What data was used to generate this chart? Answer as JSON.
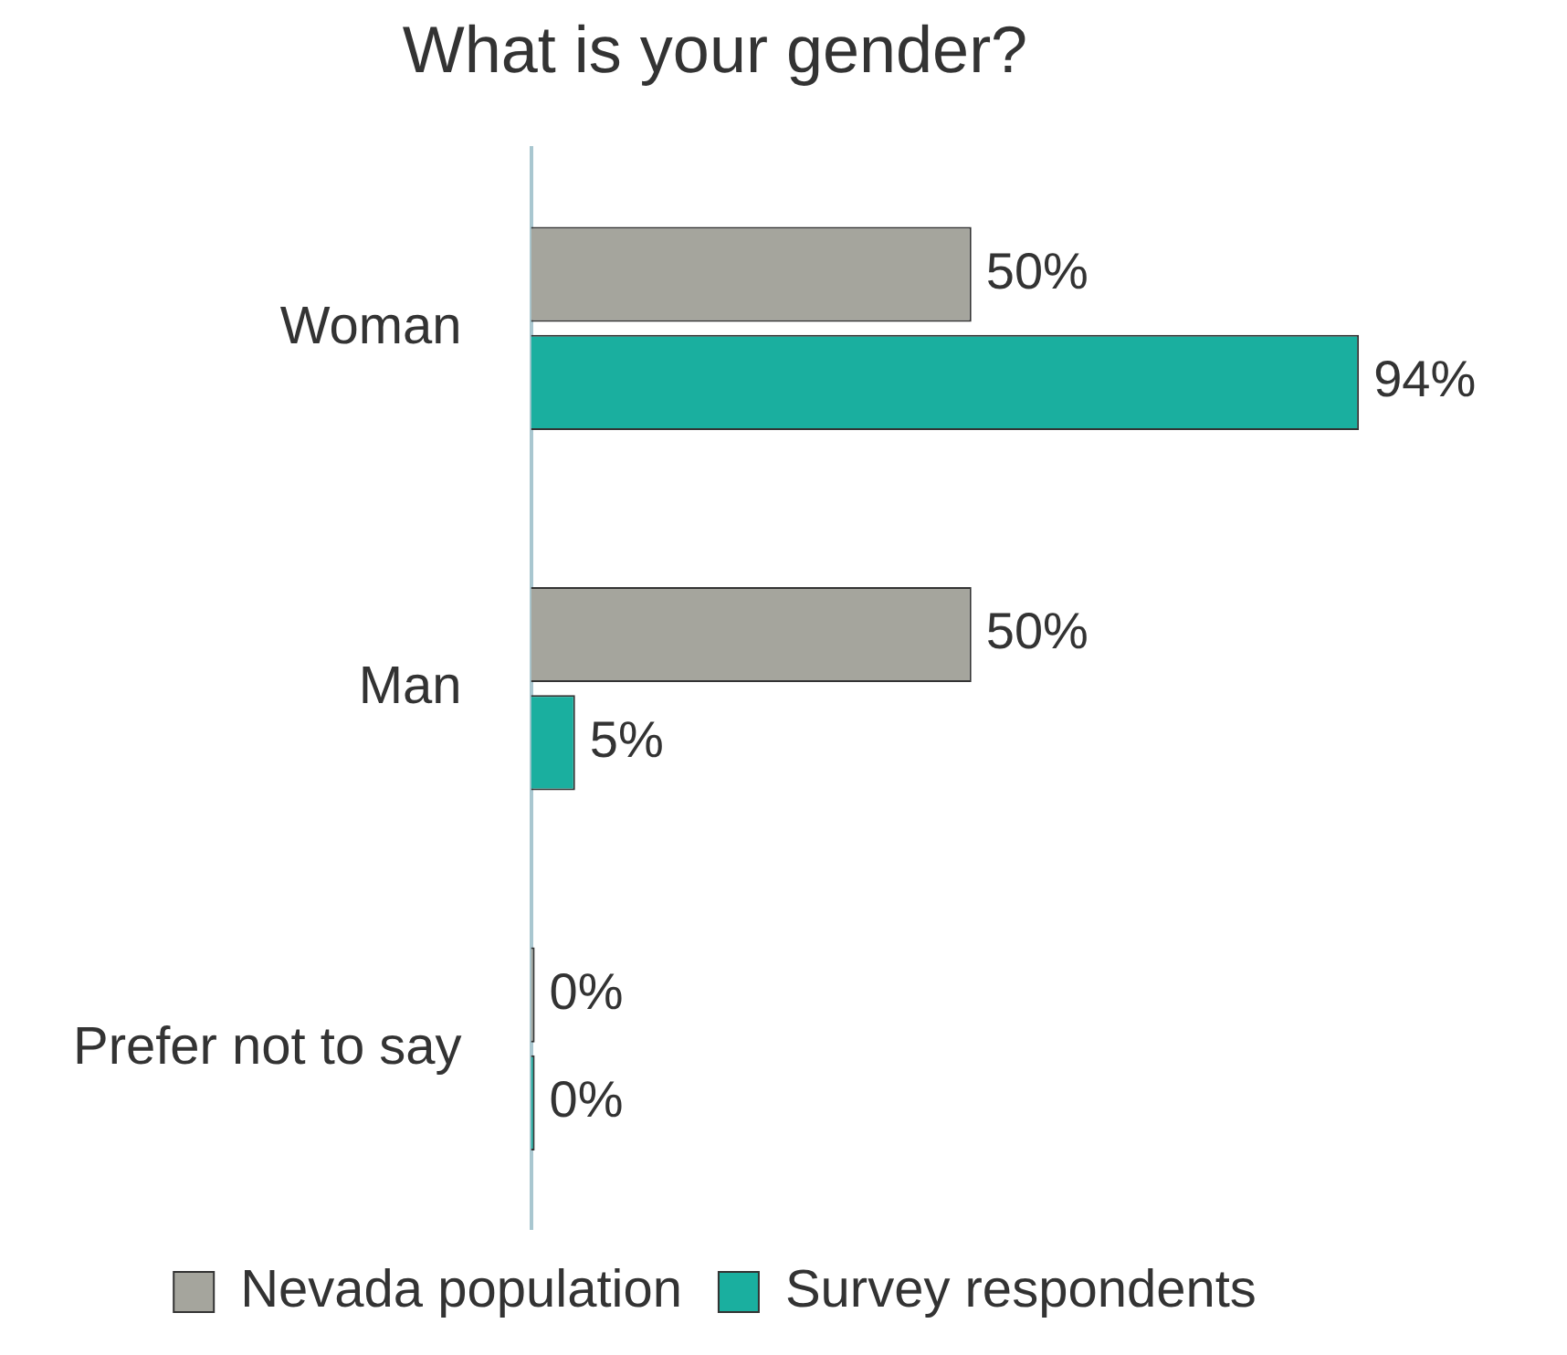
{
  "chart_data": {
    "type": "bar",
    "orientation": "horizontal",
    "title": "What is your gender?",
    "categories": [
      "Woman",
      "Man",
      "Prefer not to say"
    ],
    "series": [
      {
        "name": "Nevada population",
        "color": "#a5a59d",
        "values": [
          50,
          50,
          0
        ],
        "value_labels": [
          "50%",
          "50%",
          "0%"
        ]
      },
      {
        "name": "Survey respondents",
        "color": "#1aaf9f",
        "values": [
          94,
          5,
          0
        ],
        "value_labels": [
          "94%",
          "5%",
          "0%"
        ]
      }
    ],
    "legend": "bottom",
    "grid": false,
    "tick_labels": "y"
  }
}
